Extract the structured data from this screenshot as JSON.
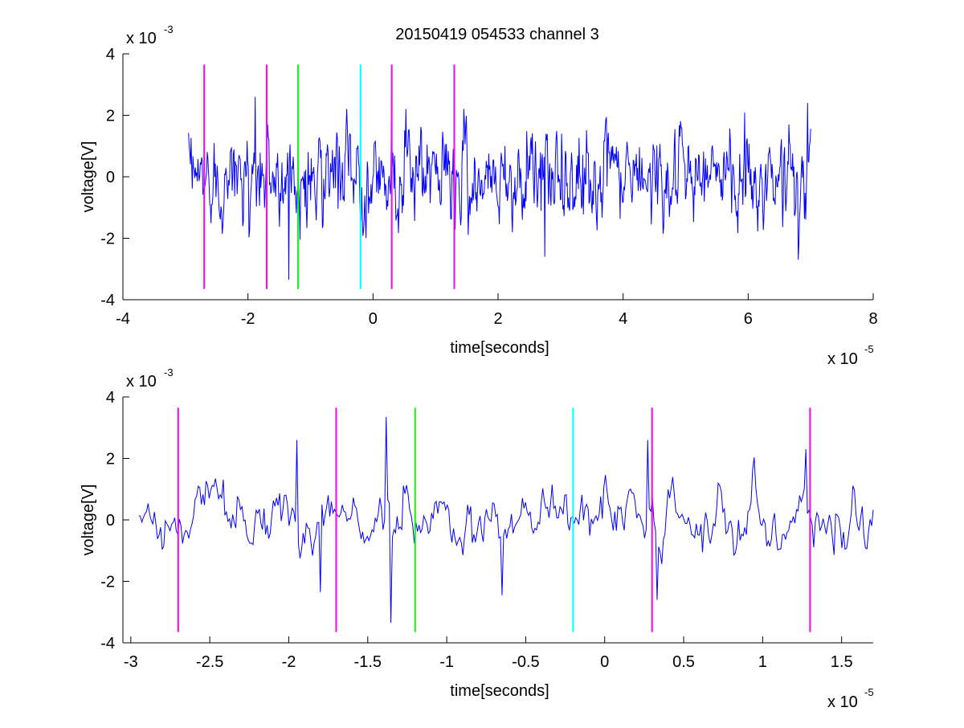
{
  "figure": {
    "title": "20150419 054533 channel 3"
  },
  "chart_data": [
    {
      "type": "line",
      "title": "20150419 054533 channel 3",
      "xlabel": "time[seconds]",
      "ylabel": "voltage[V]",
      "x_exponent": "x 10",
      "x_exponent_power": "-5",
      "y_exponent": "x 10",
      "y_exponent_power": "-3",
      "xlim": [
        -4,
        8
      ],
      "ylim": [
        -4,
        4
      ],
      "x_scale_note": "x values in units of 1e-5 s; y values in units of 1e-3 V",
      "xticks": [
        -4,
        -2,
        0,
        2,
        4,
        6,
        8
      ],
      "xtick_labels": [
        "-4",
        "-2",
        "0",
        "2",
        "4",
        "6",
        "8"
      ],
      "yticks": [
        -4,
        -2,
        0,
        2,
        4
      ],
      "ytick_labels": [
        "-4",
        "-2",
        "0",
        "2",
        "4"
      ],
      "grid": false,
      "series": [
        {
          "color": "#0000ff",
          "x_start": -2.95,
          "x_end": 7.0,
          "num_points": 1000,
          "approx_amplitude": 2.6,
          "key_peaks": [
            {
              "x": -1.35,
              "y": -3.35
            },
            {
              "x": -1.88,
              "y": 2.6
            },
            {
              "x": 0.3,
              "y": 2.6
            },
            {
              "x": 2.75,
              "y": -2.6
            },
            {
              "x": 6.8,
              "y": -2.7
            },
            {
              "x": 6.95,
              "y": 2.4
            }
          ]
        }
      ],
      "vertical_markers": [
        {
          "x": -2.7,
          "color": "#ff00ff"
        },
        {
          "x": -1.7,
          "color": "#ff00ff"
        },
        {
          "x": -1.2,
          "color": "#00ff00"
        },
        {
          "x": -0.2,
          "color": "#00ffff"
        },
        {
          "x": 0.3,
          "color": "#ff00ff"
        },
        {
          "x": 1.3,
          "color": "#ff00ff"
        }
      ],
      "marker_y_range": [
        -3.65,
        3.65
      ]
    },
    {
      "type": "line",
      "title": "",
      "xlabel": "time[seconds]",
      "ylabel": "voltage[V]",
      "x_exponent": "x 10",
      "x_exponent_power": "-5",
      "y_exponent": "x 10",
      "y_exponent_power": "-3",
      "xlim": [
        -3.05,
        1.7
      ],
      "ylim": [
        -4,
        4
      ],
      "xticks": [
        -3,
        -2.5,
        -2,
        -1.5,
        -1,
        -0.5,
        0,
        0.5,
        1,
        1.5
      ],
      "xtick_labels": [
        "-3",
        "-2.5",
        "-2",
        "-1.5",
        "-1",
        "-0.5",
        "0",
        "0.5",
        "1",
        "1.5"
      ],
      "yticks": [
        -4,
        -2,
        0,
        2,
        4
      ],
      "ytick_labels": [
        "-4",
        "-2",
        "0",
        "2",
        "4"
      ],
      "grid": false,
      "series": [
        {
          "color": "#0000ff",
          "x_start": -2.95,
          "x_end": 1.7,
          "num_points": 470,
          "approx_amplitude": 2.5,
          "key_peaks": [
            {
              "x": -1.95,
              "y": 2.6
            },
            {
              "x": -1.8,
              "y": -2.35
            },
            {
              "x": -1.38,
              "y": 3.35
            },
            {
              "x": -1.35,
              "y": -3.35
            },
            {
              "x": 0.27,
              "y": 2.6
            },
            {
              "x": 0.33,
              "y": -2.6
            },
            {
              "x": -0.65,
              "y": -2.45
            },
            {
              "x": 1.27,
              "y": 2.3
            }
          ]
        }
      ],
      "vertical_markers": [
        {
          "x": -2.7,
          "color": "#ff00ff"
        },
        {
          "x": -1.7,
          "color": "#ff00ff"
        },
        {
          "x": -1.2,
          "color": "#00ff00"
        },
        {
          "x": -0.2,
          "color": "#00ffff"
        },
        {
          "x": 0.3,
          "color": "#ff00ff"
        },
        {
          "x": 1.3,
          "color": "#ff00ff"
        }
      ],
      "marker_y_range": [
        -3.65,
        3.65
      ]
    }
  ]
}
